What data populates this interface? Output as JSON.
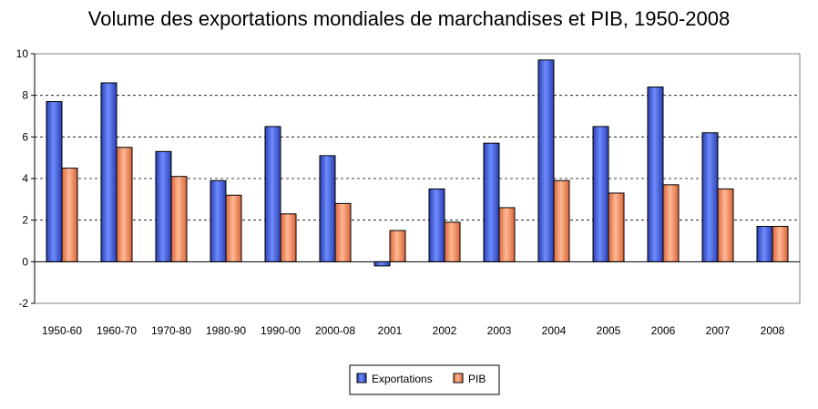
{
  "chart_data": {
    "type": "bar",
    "title": "Volume des exportations mondiales de marchandises et PIB, 1950-2008",
    "xlabel": "",
    "ylabel": "",
    "categories": [
      "1950-60",
      "1960-70",
      "1970-80",
      "1980-90",
      "1990-00",
      "2000-08",
      "2001",
      "2002",
      "2003",
      "2004",
      "2005",
      "2006",
      "2007",
      "2008"
    ],
    "series": [
      {
        "name": "Exportations",
        "color": "#4a6fe3",
        "values": [
          7.7,
          8.6,
          5.3,
          3.9,
          6.5,
          5.1,
          -0.2,
          3.5,
          5.7,
          9.7,
          6.5,
          8.4,
          6.2,
          1.7
        ]
      },
      {
        "name": "PIB",
        "color": "#ff9a6a",
        "values": [
          4.5,
          5.5,
          4.1,
          3.2,
          2.3,
          2.8,
          1.5,
          1.9,
          2.6,
          3.9,
          3.3,
          3.7,
          3.5,
          1.7
        ]
      }
    ],
    "ylim": [
      -2,
      10
    ],
    "yticks": [
      -2,
      0,
      2,
      4,
      6,
      8,
      10
    ],
    "grid": true,
    "legend_position": "bottom-center"
  }
}
